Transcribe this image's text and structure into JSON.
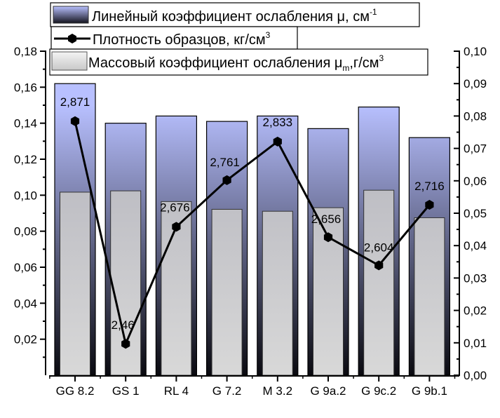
{
  "chart_data": {
    "type": "bar",
    "title": "",
    "xlabel": "",
    "ylabel": "",
    "categories": [
      "GG 8.2",
      "GS 1",
      "RL 4",
      "G 7.2",
      "M 3.2",
      "G 9a.2",
      "G 9c.2",
      "G 9b.1"
    ],
    "series": [
      {
        "name": "Линейный коэффициент ослабления μ, см-1",
        "type": "bar",
        "axis": "left",
        "values": [
          0.162,
          0.14,
          0.144,
          0.141,
          0.144,
          0.137,
          0.149,
          0.132
        ],
        "color_top": "#b8c0ff",
        "color_bottom": "#0a0a10"
      },
      {
        "name": "Массовый коэффициент ослабления μm, г/см3",
        "type": "bar",
        "axis": "right",
        "values": [
          0.0565,
          0.0569,
          0.0536,
          0.0512,
          0.0506,
          0.0517,
          0.0571,
          0.0486
        ],
        "color_top": "#bebec4",
        "color_bottom": "#d8d8d8"
      },
      {
        "name": "Плотность образцов, кг/см3",
        "type": "line",
        "axis": "right",
        "values": [
          0.0784,
          0.0097,
          0.0458,
          0.0602,
          0.0721,
          0.0426,
          0.0339,
          0.0526
        ],
        "labels": [
          "2,871",
          "2,46",
          "2,676",
          "2,761",
          "2,833",
          "2,656",
          "2,604",
          "2,716"
        ],
        "density_values": [
          2.871,
          2.46,
          2.676,
          2.761,
          2.833,
          2.656,
          2.604,
          2.716
        ],
        "color": "#000000"
      }
    ],
    "left_axis": {
      "ylim": [
        0,
        0.18
      ],
      "ticks": [
        "0,02",
        "0,04",
        "0,06",
        "0,08",
        "0,10",
        "0,12",
        "0,14",
        "0,16",
        "0,18"
      ],
      "tick_values": [
        0.02,
        0.04,
        0.06,
        0.08,
        0.1,
        0.12,
        0.14,
        0.16,
        0.18
      ]
    },
    "right_axis": {
      "ylim": [
        0,
        0.1
      ],
      "ticks": [
        "0,00",
        "0,01",
        "0,02",
        "0,03",
        "0,04",
        "0,05",
        "0,06",
        "0,07",
        "0,08",
        "0,09",
        "0,10"
      ],
      "tick_values": [
        0.0,
        0.01,
        0.02,
        0.03,
        0.04,
        0.05,
        0.06,
        0.07,
        0.08,
        0.09,
        0.1
      ]
    },
    "grid": false,
    "legend_position": "top"
  },
  "legend": {
    "linear": {
      "text": "Линейный коэффициент ослабления μ, см",
      "sup": "-1"
    },
    "density": {
      "text": "Плотность образцов, кг/см",
      "sup": "3"
    },
    "mass": {
      "text": "Массовый коэффициент ослабления μ",
      "sub": "m",
      "tail": ",г/см",
      "sup": "3"
    }
  }
}
